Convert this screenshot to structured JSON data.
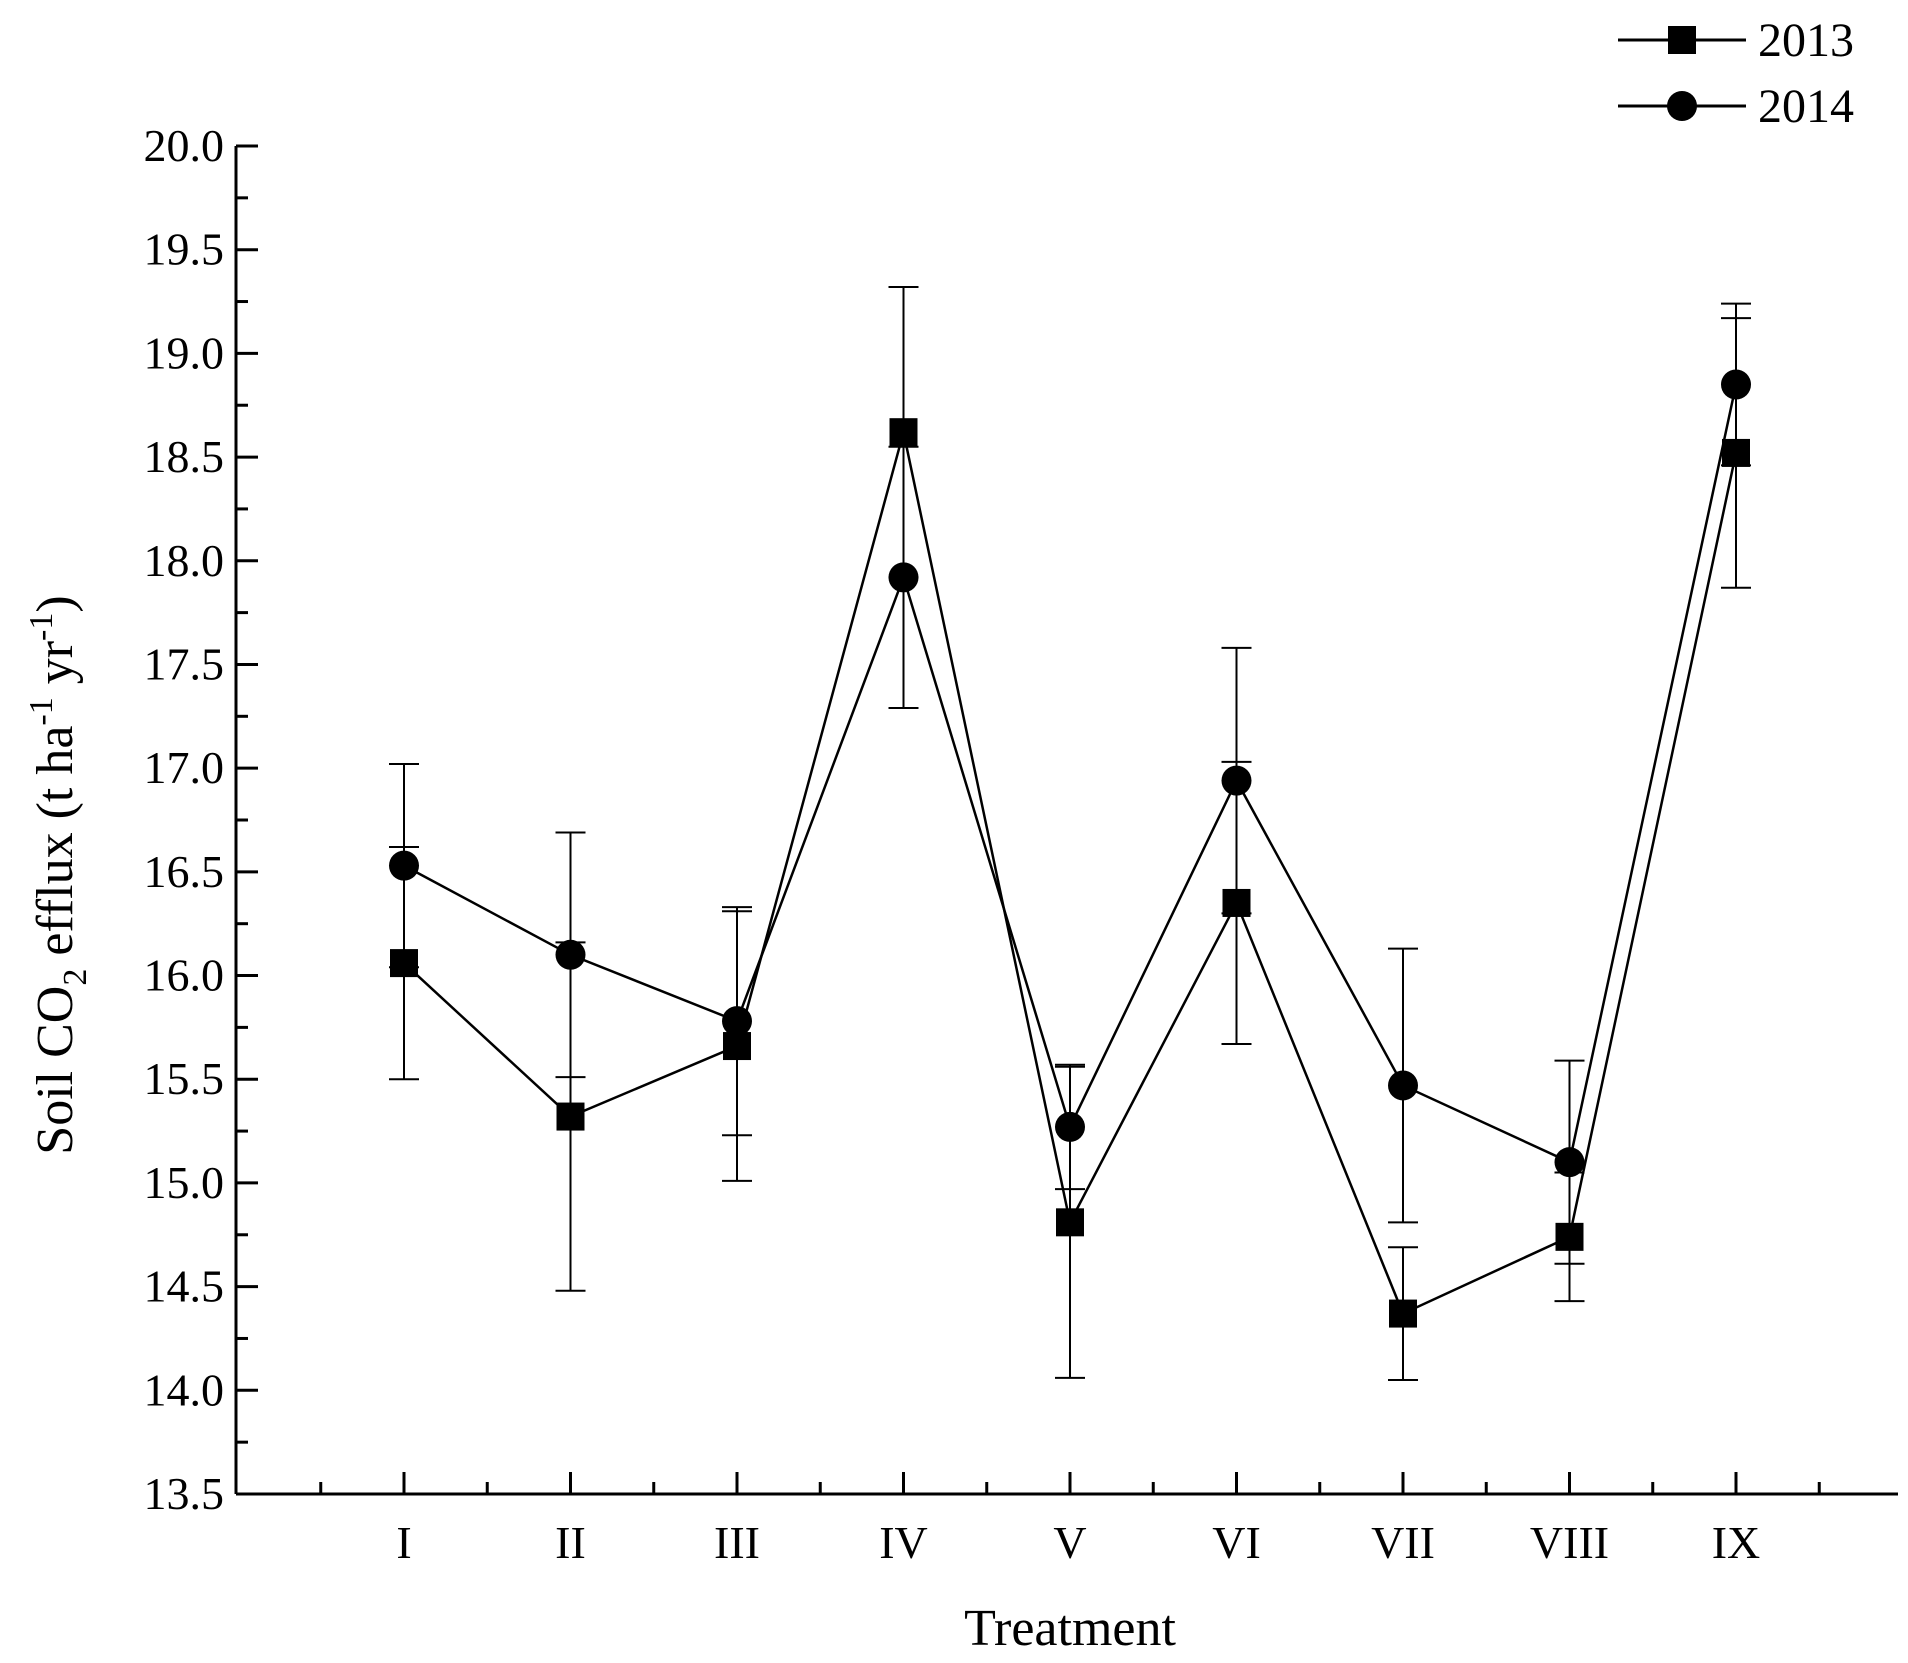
{
  "chart_data": {
    "type": "line",
    "xlabel": "Treatment",
    "ylabel": {
      "prefix": "Soil CO",
      "sub": "2",
      "mid": " efflux (t ha",
      "sup1": "-1",
      "mid2": " yr",
      "sup2": "-1",
      "suffix": ")"
    },
    "categories": [
      "I",
      "II",
      "III",
      "IV",
      "V",
      "VI",
      "VII",
      "VIII",
      "IX"
    ],
    "ylim": [
      13.5,
      20.0
    ],
    "yticks": [
      "13.5",
      "14.0",
      "14.5",
      "15.0",
      "15.5",
      "16.0",
      "16.5",
      "17.0",
      "17.5",
      "18.0",
      "18.5",
      "19.0",
      "19.5",
      "20.0"
    ],
    "grid": false,
    "legend_position": "top-right",
    "series": [
      {
        "name": "2013",
        "marker": "square",
        "values": [
          16.06,
          15.32,
          15.66,
          18.62,
          14.81,
          16.35,
          14.37,
          14.74,
          18.52
        ],
        "errors": [
          0.56,
          0.84,
          0.65,
          0.7,
          0.75,
          0.68,
          0.32,
          0.31,
          0.65
        ]
      },
      {
        "name": "2014",
        "marker": "circle",
        "values": [
          16.53,
          16.1,
          15.78,
          17.92,
          15.27,
          16.94,
          15.47,
          15.1,
          18.85
        ],
        "errors": [
          0.49,
          0.59,
          0.55,
          0.63,
          0.3,
          0.64,
          0.66,
          0.49,
          0.39
        ]
      }
    ]
  }
}
